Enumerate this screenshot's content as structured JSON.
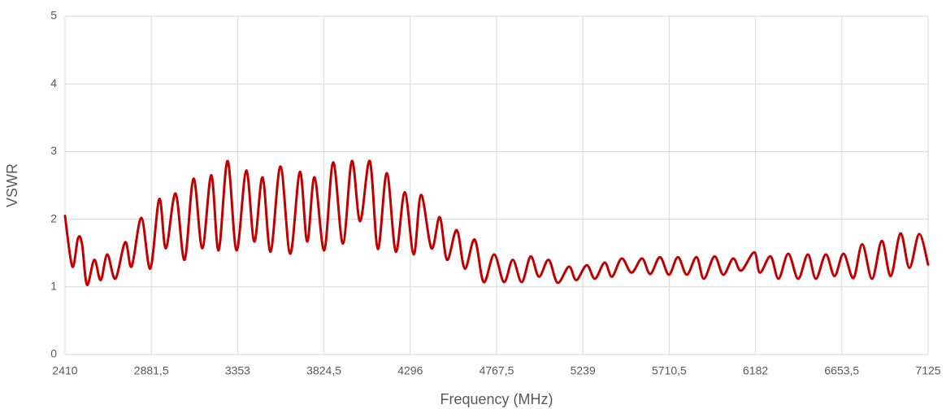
{
  "chart_data": {
    "type": "line",
    "x_label": "Frequency (MHz)",
    "y_label": "VSWR",
    "xlim": [
      2410,
      7125
    ],
    "xticks": [
      2410,
      {
        "value": 2881.5,
        "label": "2881,5"
      },
      3353,
      {
        "value": 3824.5,
        "label": "3824,5"
      },
      4296,
      {
        "value": 4767.5,
        "label": "4767,5"
      },
      5239,
      {
        "value": 5710.5,
        "label": "5710,5"
      },
      6182,
      {
        "value": 6653.5,
        "label": "6653,5"
      },
      7125
    ],
    "ylim": [
      0,
      5
    ],
    "yticks": [
      0,
      1,
      2,
      3,
      4,
      5
    ],
    "grid": true,
    "line_width": 3,
    "x": [
      2410,
      2450,
      2481,
      2503,
      2530,
      2570,
      2605,
      2641,
      2685,
      2739,
      2774,
      2827,
      2876,
      2925,
      2961,
      3014,
      3063,
      3112,
      3160,
      3209,
      3249,
      3298,
      3347,
      3400,
      3444,
      3489,
      3533,
      3587,
      3640,
      3693,
      3733,
      3773,
      3826,
      3875,
      3928,
      3977,
      4022,
      4075,
      4119,
      4168,
      4217,
      4266,
      4315,
      4355,
      4412,
      4457,
      4497,
      4550,
      4594,
      4648,
      4697,
      4754,
      4808,
      4856,
      4905,
      4954,
      4999,
      5052,
      5101,
      5163,
      5203,
      5260,
      5305,
      5358,
      5398,
      5451,
      5505,
      5562,
      5607,
      5660,
      5709,
      5758,
      5807,
      5860,
      5900,
      5958,
      6006,
      6060,
      6104,
      6175,
      6206,
      6264,
      6308,
      6361,
      6415,
      6468,
      6512,
      6566,
      6614,
      6663,
      6717,
      6765,
      6819,
      6872,
      6921,
      6974,
      7023,
      7076,
      7125
    ],
    "series": [
      {
        "color": "#c00000",
        "values": [
          2.05,
          1.3,
          1.72,
          1.63,
          1.03,
          1.4,
          1.1,
          1.48,
          1.12,
          1.66,
          1.3,
          2.02,
          1.27,
          2.3,
          1.57,
          2.38,
          1.4,
          2.6,
          1.57,
          2.65,
          1.54,
          2.86,
          1.54,
          2.72,
          1.67,
          2.62,
          1.52,
          2.78,
          1.49,
          2.7,
          1.67,
          2.62,
          1.54,
          2.84,
          1.64,
          2.86,
          1.97,
          2.86,
          1.56,
          2.68,
          1.52,
          2.4,
          1.48,
          2.36,
          1.57,
          2.03,
          1.4,
          1.84,
          1.27,
          1.7,
          1.07,
          1.48,
          1.07,
          1.4,
          1.07,
          1.45,
          1.15,
          1.4,
          1.06,
          1.3,
          1.1,
          1.32,
          1.12,
          1.36,
          1.15,
          1.42,
          1.21,
          1.42,
          1.19,
          1.44,
          1.18,
          1.44,
          1.18,
          1.44,
          1.12,
          1.45,
          1.18,
          1.42,
          1.24,
          1.51,
          1.21,
          1.45,
          1.12,
          1.49,
          1.12,
          1.48,
          1.12,
          1.48,
          1.16,
          1.49,
          1.13,
          1.63,
          1.12,
          1.68,
          1.16,
          1.79,
          1.28,
          1.78,
          1.33
        ]
      }
    ]
  }
}
